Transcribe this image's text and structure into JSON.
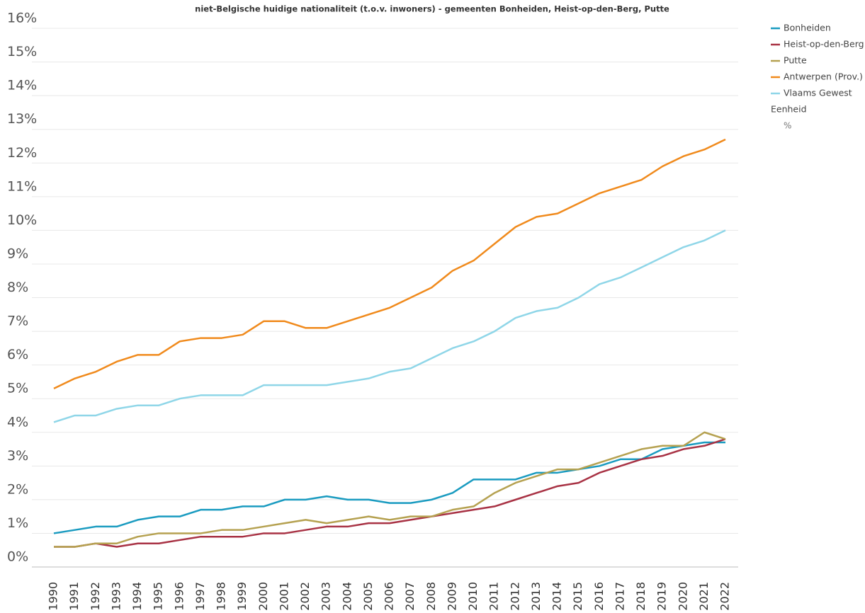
{
  "chart_data": {
    "type": "line",
    "title": "niet-Belgische huidige nationaliteit (t.o.v. inwoners) - gemeenten Bonheiden, Heist-op-den-Berg, Putte",
    "categories": [
      "1990",
      "1991",
      "1992",
      "1993",
      "1994",
      "1995",
      "1996",
      "1997",
      "1998",
      "1999",
      "2000",
      "2001",
      "2002",
      "2003",
      "2004",
      "2005",
      "2006",
      "2007",
      "2008",
      "2009",
      "2010",
      "2011",
      "2012",
      "2013",
      "2014",
      "2015",
      "2016",
      "2017",
      "2018",
      "2019",
      "2020",
      "2021",
      "2022"
    ],
    "series": [
      {
        "name": "Bonheiden",
        "color": "#1a9bc0",
        "values": [
          1.0,
          1.1,
          1.2,
          1.2,
          1.4,
          1.5,
          1.5,
          1.7,
          1.7,
          1.8,
          1.8,
          2.0,
          2.0,
          2.1,
          2.0,
          2.0,
          1.9,
          1.9,
          2.0,
          2.2,
          2.6,
          2.6,
          2.6,
          2.8,
          2.8,
          2.9,
          3.0,
          3.2,
          3.2,
          3.5,
          3.6,
          3.7,
          3.7
        ]
      },
      {
        "name": "Heist-op-den-Berg",
        "color": "#a83244",
        "values": [
          0.6,
          0.6,
          0.7,
          0.6,
          0.7,
          0.7,
          0.8,
          0.9,
          0.9,
          0.9,
          1.0,
          1.0,
          1.1,
          1.2,
          1.2,
          1.3,
          1.3,
          1.4,
          1.5,
          1.6,
          1.7,
          1.8,
          2.0,
          2.2,
          2.4,
          2.5,
          2.8,
          3.0,
          3.2,
          3.3,
          3.5,
          3.6,
          3.8
        ]
      },
      {
        "name": "Putte",
        "color": "#b5a150",
        "values": [
          0.6,
          0.6,
          0.7,
          0.7,
          0.9,
          1.0,
          1.0,
          1.0,
          1.1,
          1.1,
          1.2,
          1.3,
          1.4,
          1.3,
          1.4,
          1.5,
          1.4,
          1.5,
          1.5,
          1.7,
          1.8,
          2.2,
          2.5,
          2.7,
          2.9,
          2.9,
          3.1,
          3.3,
          3.5,
          3.6,
          3.6,
          4.0,
          3.8
        ]
      },
      {
        "name": "Antwerpen (Prov.)",
        "color": "#f08a1c",
        "values": [
          5.3,
          5.6,
          5.8,
          6.1,
          6.3,
          6.3,
          6.7,
          6.8,
          6.8,
          6.9,
          7.3,
          7.3,
          7.1,
          7.1,
          7.3,
          7.5,
          7.7,
          8.0,
          8.3,
          8.8,
          9.1,
          9.6,
          10.1,
          10.4,
          10.5,
          10.8,
          11.1,
          11.3,
          11.5,
          11.9,
          12.2,
          12.4,
          12.7
        ]
      },
      {
        "name": "Vlaams Gewest",
        "color": "#8fd6e8",
        "values": [
          4.3,
          4.5,
          4.5,
          4.7,
          4.8,
          4.8,
          5.0,
          5.1,
          5.1,
          5.1,
          5.4,
          5.4,
          5.4,
          5.4,
          5.5,
          5.6,
          5.8,
          5.9,
          6.2,
          6.5,
          6.7,
          7.0,
          7.4,
          7.6,
          7.7,
          8.0,
          8.4,
          8.6,
          8.9,
          9.2,
          9.5,
          9.7,
          10.0
        ]
      }
    ],
    "legend_title": "Eenheid",
    "unit": "%",
    "ylim": [
      0,
      16
    ],
    "yticks": [
      {
        "value": 0,
        "label": "0%"
      },
      {
        "value": 1,
        "label": "1%"
      },
      {
        "value": 2,
        "label": "2%"
      },
      {
        "value": 3,
        "label": "3%"
      },
      {
        "value": 4,
        "label": "4%"
      },
      {
        "value": 5,
        "label": "5%"
      },
      {
        "value": 6,
        "label": "6%"
      },
      {
        "value": 7,
        "label": "7%"
      },
      {
        "value": 8,
        "label": "8%"
      },
      {
        "value": 9,
        "label": "9%"
      },
      {
        "value": 10,
        "label": "10%"
      },
      {
        "value": 11,
        "label": "11%"
      },
      {
        "value": 12,
        "label": "12%"
      },
      {
        "value": 13,
        "label": "13%"
      },
      {
        "value": 14,
        "label": "14%"
      },
      {
        "value": 15,
        "label": "15%"
      },
      {
        "value": 16,
        "label": "16%"
      }
    ],
    "grid": true,
    "legend": "right"
  }
}
